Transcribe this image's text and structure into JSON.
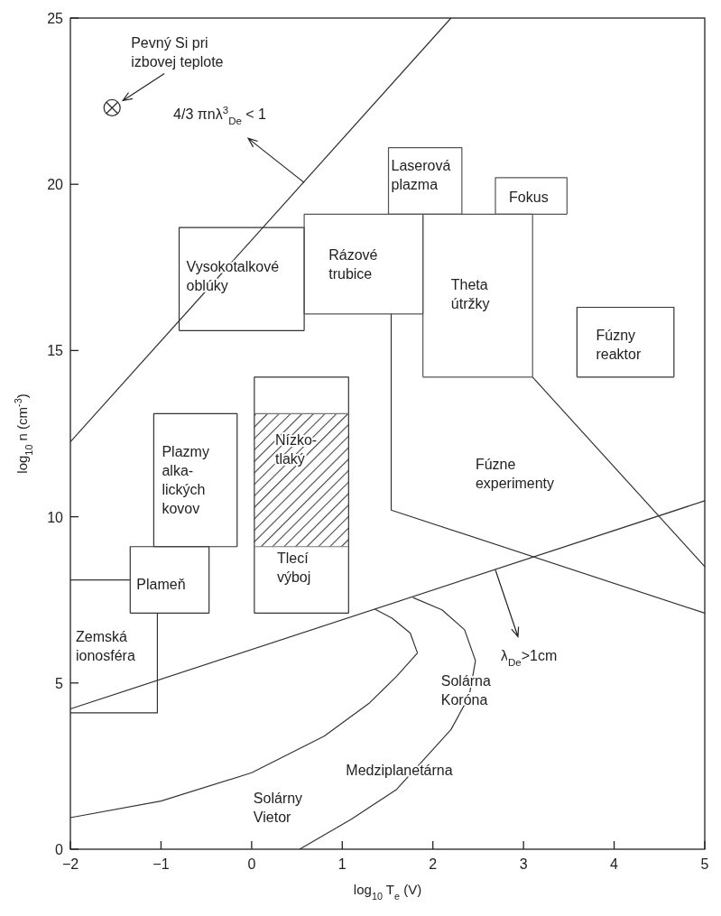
{
  "chart_data": {
    "type": "line",
    "xlabel": "log$_{10}$ T$_{e}$ (V)",
    "ylabel": "log$_{10}$ n (cm$^{-3}$)",
    "xlim": [
      -2,
      5
    ],
    "ylim": [
      0,
      25
    ],
    "xticks": [
      -2,
      -1,
      0,
      1,
      2,
      3,
      4,
      5
    ],
    "yticks": [
      0,
      5,
      10,
      15,
      20,
      25
    ],
    "series": [
      {
        "color": "#333333",
        "x": [
          -2,
          2.2
        ],
        "values": [
          12.25,
          25
        ]
      },
      {
        "type": "line",
        "color": "#333333",
        "x": [
          -2,
          5
        ],
        "values": [
          4.22,
          10.48
        ]
      },
      {
        "type": "line",
        "color": "#333333",
        "x": [
          -0.8,
          -0.8,
          0.58,
          0.58
        ],
        "values": [
          15.6,
          18.7,
          18.7,
          15.6
        ]
      },
      {
        "type": "line",
        "color": "#333333",
        "x": [
          -0.8,
          0.58
        ],
        "values": [
          15.6,
          15.6
        ]
      },
      {
        "type": "line",
        "color": "#555555",
        "x": [
          0.58,
          0.58,
          1.89,
          1.89
        ],
        "values": [
          16.1,
          19.1,
          19.1,
          16.1
        ]
      },
      {
        "type": "line",
        "color": "#555555",
        "x": [
          0.58,
          1.89
        ],
        "values": [
          16.1,
          16.1
        ]
      },
      {
        "type": "line",
        "color": "#555555",
        "x": [
          1.51,
          1.51,
          2.32,
          2.32
        ],
        "values": [
          19.1,
          21.1,
          21.1,
          19.1
        ]
      },
      {
        "type": "line",
        "color": "#555555",
        "x": [
          1.51,
          2.32
        ],
        "values": [
          19.1,
          19.1
        ]
      },
      {
        "type": "line",
        "color": "#555555",
        "x": [
          2.69,
          2.69,
          3.48,
          3.48
        ],
        "values": [
          19.1,
          20.2,
          20.2,
          19.1
        ]
      },
      {
        "type": "line",
        "color": "#555555",
        "x": [
          2.69,
          3.48
        ],
        "values": [
          19.1,
          19.1
        ]
      },
      {
        "type": "line",
        "color": "#555555",
        "x": [
          1.89,
          1.89,
          3.1,
          3.1
        ],
        "values": [
          14.2,
          19.1,
          19.1,
          14.2
        ]
      },
      {
        "type": "line",
        "color": "#555555",
        "x": [
          1.89,
          3.1
        ],
        "values": [
          14.2,
          14.2
        ]
      },
      {
        "type": "line",
        "color": "#333333",
        "x": [
          3.59,
          3.59,
          4.66,
          4.66
        ],
        "values": [
          14.2,
          16.3,
          16.3,
          14.2
        ]
      },
      {
        "type": "line",
        "color": "#333333",
        "x": [
          3.59,
          4.66
        ],
        "values": [
          14.2,
          14.2
        ]
      },
      {
        "type": "line",
        "color": "#333333",
        "x": [
          1.54,
          1.54,
          5
        ],
        "values": [
          16.1,
          10.2,
          7.1
        ]
      },
      {
        "type": "line",
        "color": "#333333",
        "x": [
          3.1,
          5
        ],
        "values": [
          14.2,
          8.5
        ]
      },
      {
        "type": "line",
        "color": "#333333",
        "x": [
          -1.08,
          -1.08,
          -0.16,
          -0.16
        ],
        "values": [
          9.1,
          13.1,
          13.1,
          9.1
        ]
      },
      {
        "type": "line",
        "color": "#333333",
        "x": [
          -1.08,
          -0.16
        ],
        "values": [
          9.1,
          9.1
        ]
      },
      {
        "type": "line",
        "color": "#333333",
        "x": [
          -1.34,
          -1.34,
          -0.47,
          -0.47
        ],
        "values": [
          7.1,
          9.1,
          9.1,
          7.1
        ]
      },
      {
        "type": "line",
        "color": "#333333",
        "x": [
          -1.34,
          -0.47
        ],
        "values": [
          7.1,
          7.1
        ]
      },
      {
        "type": "line",
        "color": "#333333",
        "x": [
          -2,
          -1.34
        ],
        "values": [
          8.1,
          8.1
        ]
      },
      {
        "type": "line",
        "color": "#333333",
        "x": [
          -2,
          -1.04,
          -1.04
        ],
        "values": [
          4.1,
          4.1,
          7.1
        ]
      },
      {
        "type": "line",
        "color": "#333333",
        "x": [
          0.03,
          0.03,
          1.07,
          1.07
        ],
        "values": [
          7.1,
          14.2,
          14.2,
          7.1
        ]
      },
      {
        "type": "line",
        "color": "#333333",
        "x": [
          0.03,
          1.07
        ],
        "values": [
          7.1,
          7.1
        ]
      },
      {
        "type": "line",
        "color": "#777777",
        "x": [
          0.03,
          1.07
        ],
        "values": [
          13.1,
          13.1
        ]
      },
      {
        "type": "line",
        "color": "#777777",
        "x": [
          0.03,
          1.07
        ],
        "values": [
          9.1,
          9.1
        ]
      },
      {
        "type": "line",
        "color": "#333333",
        "x": [
          -2,
          -1,
          0,
          0.8,
          1.3,
          1.6,
          1.83
        ],
        "values": [
          0.95,
          1.45,
          2.3,
          3.4,
          4.4,
          5.2,
          5.9
        ]
      },
      {
        "type": "line",
        "color": "#333333",
        "x": [
          1.36,
          1.55,
          1.75,
          1.83
        ],
        "values": [
          7.22,
          6.95,
          6.5,
          5.9
        ]
      },
      {
        "type": "line",
        "color": "#333333",
        "x": [
          1.78,
          2.1,
          2.35,
          2.47
        ],
        "values": [
          7.57,
          7.2,
          6.6,
          5.67
        ]
      },
      {
        "type": "line",
        "color": "#333333",
        "x": [
          0.53,
          1.1,
          1.6,
          1.9,
          2.2,
          2.4,
          2.47
        ],
        "values": [
          0,
          0.9,
          1.8,
          2.7,
          3.6,
          4.6,
          5.67
        ]
      },
      {
        "type": "scatter",
        "marker": "circle",
        "color": "#333333",
        "x": [
          -1.54
        ],
        "values": [
          22.3
        ]
      }
    ],
    "annotations": [
      {
        "text": "Pevný Si pri\nizbovej teplote",
        "x": -1.54,
        "y": 22.3
      },
      {
        "text": "4/3 πnλ$^{3}$$_{De}$ < 1",
        "x": 0.58,
        "y": 20.05
      },
      {
        "text": "λ$_{De}$>1cm",
        "x": 2.69,
        "y": 8.4
      },
      "Vysokotalkové\noblúky",
      "Rázové\ntrubice",
      "Laserová\nplazma",
      "Fokus",
      "Theta\nútržky",
      "Fúzny\nreaktor",
      "Fúzne\nexperimenty",
      "Plazmy\nalka-\nlických\nkovov",
      "Nízko-\ntlaký",
      "Tlecí\nvýboj",
      "Plameň",
      "Zemská\nionosféra",
      "Solárna\nKoróna",
      "Medziplanetárna",
      "Solárny\nVietor"
    ]
  }
}
